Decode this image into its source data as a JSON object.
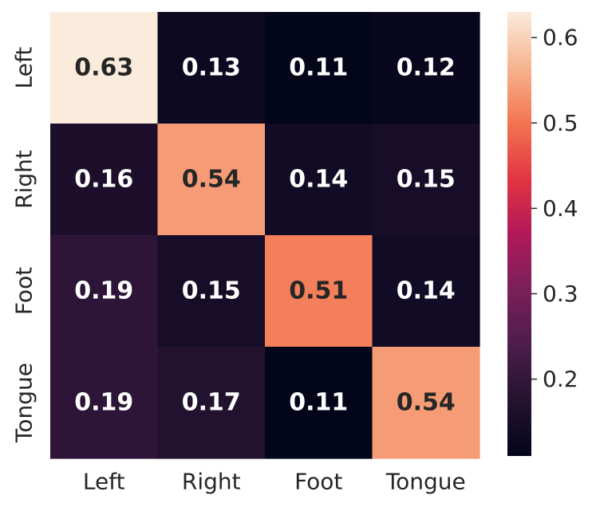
{
  "chart_data": {
    "type": "heatmap",
    "title": "",
    "xlabel": "",
    "ylabel": "",
    "x_categories": [
      "Left",
      "Right",
      "Foot",
      "Tongue"
    ],
    "y_categories": [
      "Left",
      "Right",
      "Foot",
      "Tongue"
    ],
    "values": [
      [
        0.63,
        0.13,
        0.11,
        0.12
      ],
      [
        0.16,
        0.54,
        0.14,
        0.15
      ],
      [
        0.19,
        0.15,
        0.51,
        0.14
      ],
      [
        0.19,
        0.17,
        0.11,
        0.54
      ]
    ],
    "value_labels": [
      [
        "0.63",
        "0.13",
        "0.11",
        "0.12"
      ],
      [
        "0.16",
        "0.54",
        "0.14",
        "0.15"
      ],
      [
        "0.19",
        "0.15",
        "0.51",
        "0.14"
      ],
      [
        "0.19",
        "0.17",
        "0.11",
        "0.54"
      ]
    ],
    "colormap": "rocket",
    "vmin": 0.11,
    "vmax": 0.63,
    "colorbar": {
      "ticks": [
        0.2,
        0.3,
        0.4,
        0.5,
        0.6
      ],
      "tick_labels": [
        "0.2",
        "0.3",
        "0.4",
        "0.5",
        "0.6"
      ]
    },
    "text_color_dark": "#262626",
    "text_color_light": "#ffffff"
  }
}
